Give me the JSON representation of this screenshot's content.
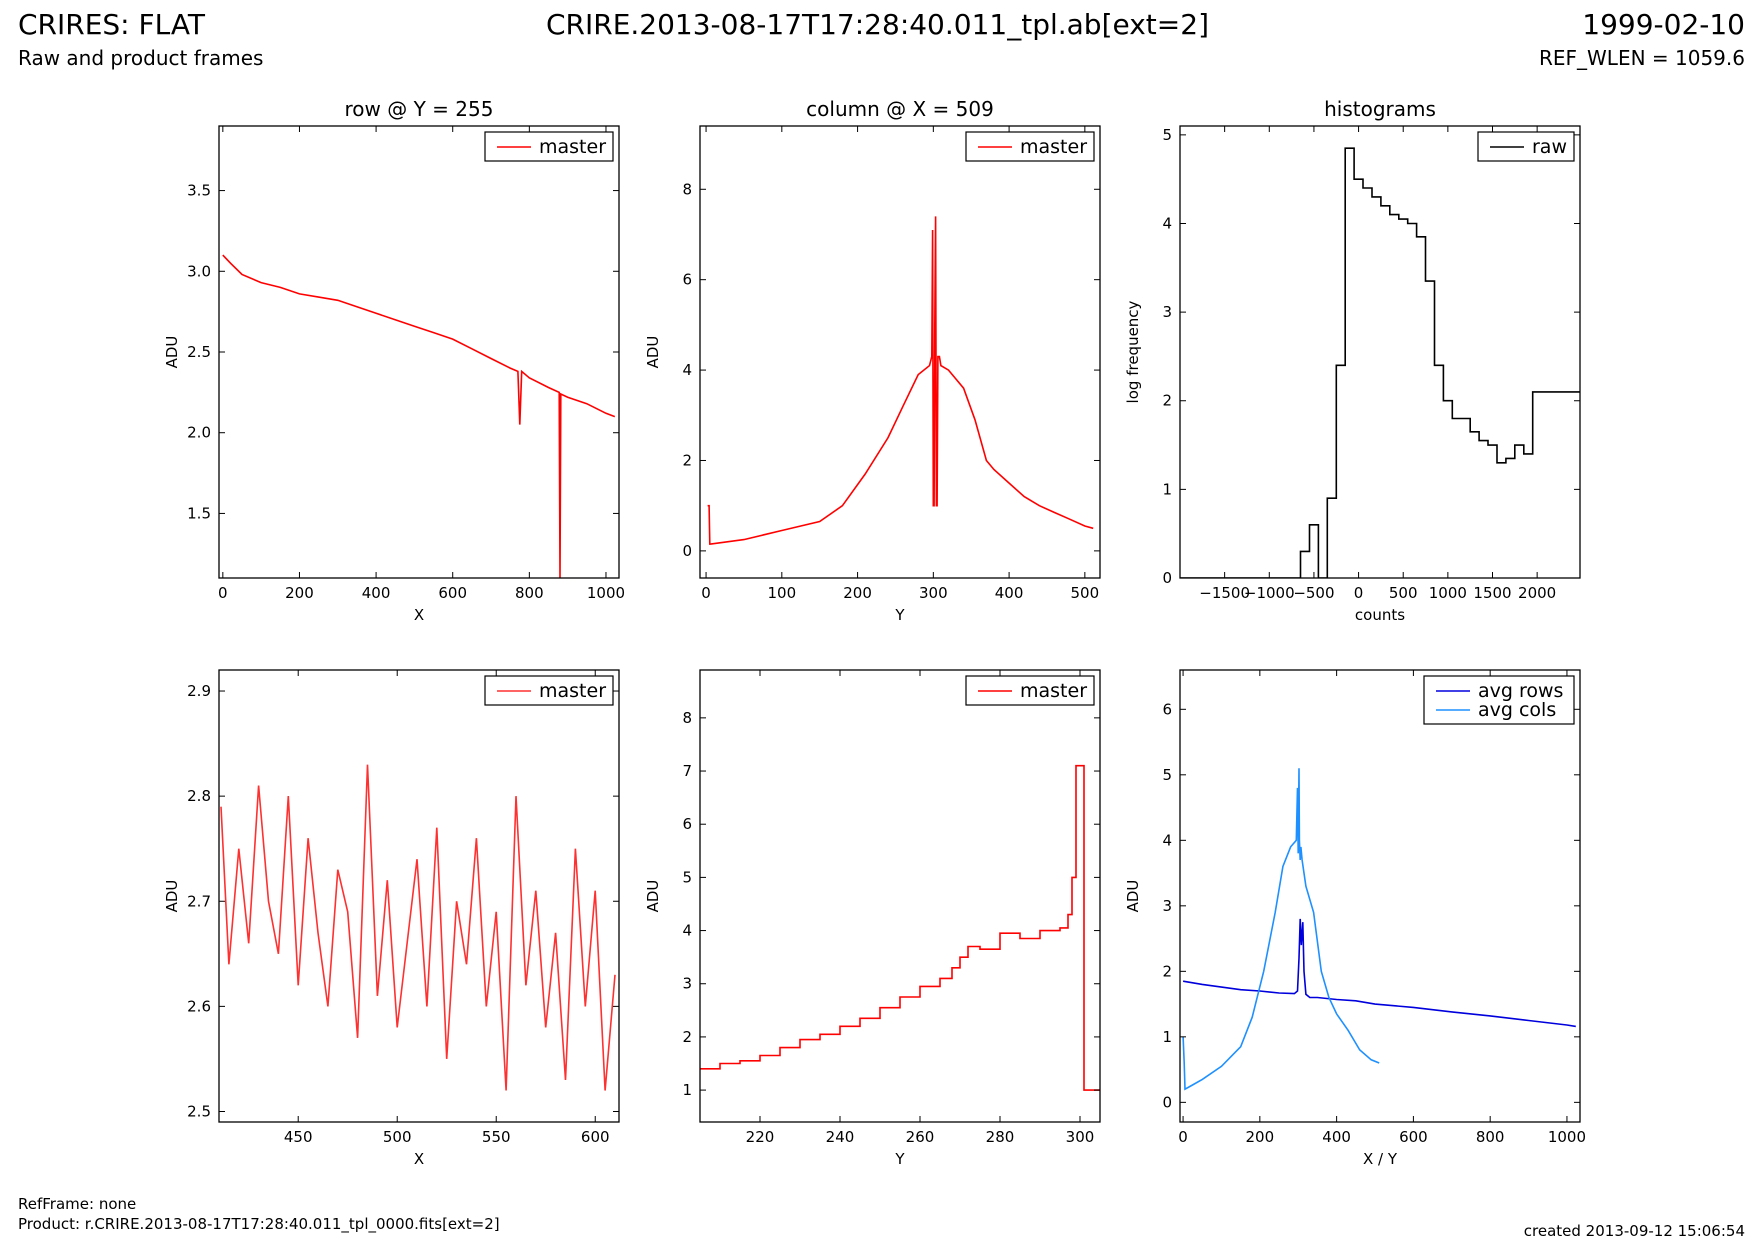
{
  "header": {
    "title": "CRIRES: FLAT",
    "subtitle": "Raw and product frames",
    "file": "CRIRE.2013-08-17T17:28:40.011_tpl.ab[ext=2]",
    "date": "1999-02-10",
    "ref_wlen": "REF_WLEN = 1059.6"
  },
  "footer": {
    "ref_frame": "RefFrame: none",
    "product": "Product: r.CRIRE.2013-08-17T17:28:40.011_tpl_0000.fits[ext=2]",
    "created": "created 2013-09-12 15:06:54"
  },
  "colors": {
    "master": "#ff0000",
    "raw": "#000000",
    "avg_rows": "#0000dd",
    "avg_cols": "#1e90ff"
  },
  "chart_data": [
    {
      "id": "row-full",
      "type": "line",
      "title": "row @ Y = 255",
      "xlabel": "X",
      "ylabel": "ADU",
      "xlim": [
        -10,
        1034
      ],
      "ylim": [
        1.1,
        3.9
      ],
      "xticks": [
        0,
        200,
        400,
        600,
        800,
        1000
      ],
      "yticks": [
        1.5,
        2.0,
        2.5,
        3.0,
        3.5
      ],
      "ytick_labels": [
        "1.5",
        "2.0",
        "2.5",
        "3.0",
        "3.5"
      ],
      "legend_position": "top-right",
      "series": [
        {
          "name": "master",
          "color": "#ff0000",
          "x": [
            0,
            20,
            50,
            100,
            150,
            200,
            250,
            300,
            350,
            400,
            450,
            500,
            550,
            600,
            650,
            700,
            750,
            770,
            775,
            780,
            800,
            850,
            878,
            880,
            882,
            900,
            950,
            1000,
            1023
          ],
          "y": [
            3.1,
            3.05,
            2.98,
            2.93,
            2.9,
            2.86,
            2.84,
            2.82,
            2.78,
            2.74,
            2.7,
            2.66,
            2.62,
            2.58,
            2.52,
            2.46,
            2.4,
            2.38,
            2.05,
            2.38,
            2.34,
            2.28,
            2.25,
            1.1,
            2.24,
            2.22,
            2.18,
            2.12,
            2.1
          ]
        }
      ]
    },
    {
      "id": "col-full",
      "type": "line",
      "title": "column @ X = 509",
      "xlabel": "Y",
      "ylabel": "ADU",
      "xlim": [
        -8,
        520
      ],
      "ylim": [
        -0.6,
        9.4
      ],
      "xticks": [
        0,
        100,
        200,
        300,
        400,
        500
      ],
      "yticks": [
        0,
        2,
        4,
        6,
        8
      ],
      "ytick_labels": [
        "0",
        "2",
        "4",
        "6",
        "8"
      ],
      "legend_position": "top-right",
      "series": [
        {
          "name": "master",
          "color": "#ff0000",
          "x": [
            2,
            4,
            5,
            6,
            50,
            100,
            150,
            180,
            210,
            240,
            260,
            280,
            295,
            298,
            299,
            300,
            301,
            302,
            303,
            304,
            305,
            306,
            308,
            310,
            320,
            340,
            355,
            370,
            380,
            400,
            420,
            440,
            460,
            480,
            500,
            511
          ],
          "y": [
            1.0,
            1.0,
            0.15,
            0.15,
            0.25,
            0.45,
            0.65,
            1.0,
            1.7,
            2.5,
            3.2,
            3.9,
            4.1,
            4.3,
            7.1,
            1.0,
            1.0,
            5.0,
            7.4,
            1.0,
            1.0,
            4.3,
            4.3,
            4.1,
            4.0,
            3.6,
            2.9,
            2.0,
            1.8,
            1.5,
            1.2,
            1.0,
            0.85,
            0.7,
            0.55,
            0.5
          ]
        }
      ]
    },
    {
      "id": "hist",
      "type": "step",
      "title": "histograms",
      "xlabel": "counts",
      "ylabel": "log frequency",
      "xlim": [
        -2000,
        2480
      ],
      "ylim": [
        0,
        5.1
      ],
      "xticks": [
        -1500,
        -1000,
        -500,
        0,
        500,
        1000,
        1500,
        2000
      ],
      "xtick_labels": [
        "−1500",
        "−1000",
        "−500",
        "0",
        "500",
        "1000",
        "1500",
        "2000"
      ],
      "yticks": [
        0,
        1,
        2,
        3,
        4,
        5
      ],
      "ytick_labels": [
        "0",
        "1",
        "2",
        "3",
        "4",
        "5"
      ],
      "legend_position": "top-right",
      "series": [
        {
          "name": "raw",
          "color": "#000000",
          "edges": [
            -2000,
            -650,
            -550,
            -450,
            -350,
            -250,
            -150,
            -50,
            50,
            150,
            250,
            350,
            450,
            550,
            650,
            750,
            850,
            950,
            1050,
            1150,
            1250,
            1350,
            1450,
            1550,
            1650,
            1750,
            1850,
            1950,
            2050,
            2150,
            2250,
            2350,
            2480
          ],
          "values": [
            0,
            0.3,
            0.6,
            0,
            0.9,
            2.4,
            4.85,
            4.5,
            4.4,
            4.3,
            4.2,
            4.1,
            4.05,
            4.0,
            3.85,
            3.35,
            2.4,
            2.0,
            1.8,
            1.8,
            1.65,
            1.55,
            1.5,
            1.3,
            1.35,
            1.5,
            1.4,
            2.1,
            2.1,
            2.1,
            2.1,
            2.1
          ]
        }
      ]
    },
    {
      "id": "row-zoom",
      "type": "line",
      "title": "",
      "xlabel": "X",
      "ylabel": "ADU",
      "xlim": [
        410,
        612
      ],
      "ylim": [
        2.49,
        2.92
      ],
      "xticks": [
        450,
        500,
        550,
        600
      ],
      "yticks": [
        2.5,
        2.6,
        2.7,
        2.8,
        2.9
      ],
      "ytick_labels": [
        "2.5",
        "2.6",
        "2.7",
        "2.8",
        "2.9"
      ],
      "legend_position": "top-right",
      "series": [
        {
          "name": "master",
          "color": "#ff3030",
          "x": [
            411,
            415,
            420,
            425,
            430,
            435,
            440,
            445,
            450,
            455,
            460,
            465,
            470,
            475,
            480,
            485,
            490,
            495,
            500,
            505,
            510,
            515,
            520,
            525,
            530,
            535,
            540,
            545,
            550,
            555,
            560,
            565,
            570,
            575,
            580,
            585,
            590,
            595,
            600,
            605,
            610
          ],
          "y": [
            2.79,
            2.64,
            2.75,
            2.66,
            2.81,
            2.7,
            2.65,
            2.8,
            2.62,
            2.76,
            2.67,
            2.6,
            2.73,
            2.69,
            2.57,
            2.83,
            2.61,
            2.72,
            2.58,
            2.66,
            2.74,
            2.6,
            2.77,
            2.55,
            2.7,
            2.64,
            2.76,
            2.6,
            2.69,
            2.52,
            2.8,
            2.62,
            2.71,
            2.58,
            2.67,
            2.53,
            2.75,
            2.6,
            2.71,
            2.52,
            2.63
          ]
        }
      ]
    },
    {
      "id": "col-zoom",
      "type": "step",
      "title": "",
      "xlabel": "Y",
      "ylabel": "ADU",
      "xlim": [
        205,
        305
      ],
      "ylim": [
        0.4,
        8.9
      ],
      "xticks": [
        220,
        240,
        260,
        280,
        300
      ],
      "yticks": [
        1,
        2,
        3,
        4,
        5,
        6,
        7,
        8
      ],
      "ytick_labels": [
        "1",
        "2",
        "3",
        "4",
        "5",
        "6",
        "7",
        "8"
      ],
      "legend_position": "top-right",
      "series": [
        {
          "name": "master",
          "color": "#ff0000",
          "x": [
            205,
            210,
            215,
            220,
            225,
            230,
            235,
            240,
            245,
            250,
            255,
            260,
            265,
            268,
            270,
            272,
            275,
            280,
            285,
            290,
            295,
            297,
            298,
            299,
            300,
            301,
            305
          ],
          "y": [
            1.4,
            1.5,
            1.55,
            1.65,
            1.8,
            1.95,
            2.05,
            2.2,
            2.35,
            2.55,
            2.75,
            2.95,
            3.1,
            3.3,
            3.5,
            3.7,
            3.65,
            3.95,
            3.85,
            4.0,
            4.05,
            4.3,
            5.0,
            7.1,
            7.1,
            1.0,
            1.0
          ]
        }
      ]
    },
    {
      "id": "avg",
      "type": "line",
      "title": "",
      "xlabel": "X / Y",
      "ylabel": "ADU",
      "xlim": [
        -8,
        1034
      ],
      "ylim": [
        -0.3,
        6.6
      ],
      "xticks": [
        0,
        200,
        400,
        600,
        800,
        1000
      ],
      "yticks": [
        0,
        1,
        2,
        3,
        4,
        5,
        6
      ],
      "ytick_labels": [
        "0",
        "1",
        "2",
        "3",
        "4",
        "5",
        "6"
      ],
      "legend_position": "top-right",
      "series": [
        {
          "name": "avg rows",
          "color": "#0000dd",
          "x": [
            0,
            50,
            100,
            150,
            200,
            250,
            290,
            298,
            302,
            305,
            308,
            312,
            315,
            320,
            330,
            350,
            400,
            450,
            500,
            600,
            700,
            800,
            900,
            1000,
            1023
          ],
          "y": [
            1.85,
            1.8,
            1.76,
            1.72,
            1.7,
            1.67,
            1.66,
            1.7,
            2.2,
            2.8,
            2.4,
            2.75,
            2.0,
            1.65,
            1.6,
            1.6,
            1.57,
            1.55,
            1.5,
            1.45,
            1.38,
            1.32,
            1.25,
            1.18,
            1.16
          ]
        }
      ]
    },
    {
      "id": "avg",
      "series": [
        {
          "name": "avg cols",
          "color": "#1e90ff",
          "x": [
            0,
            3,
            5,
            20,
            50,
            100,
            150,
            180,
            210,
            240,
            260,
            280,
            295,
            298,
            300,
            302,
            303,
            305,
            307,
            310,
            320,
            340,
            360,
            380,
            400,
            430,
            460,
            490,
            511
          ],
          "y": [
            1.0,
            0.6,
            0.2,
            0.25,
            0.35,
            0.55,
            0.85,
            1.3,
            2.0,
            2.9,
            3.6,
            3.9,
            4.0,
            4.8,
            3.8,
            5.1,
            4.0,
            3.7,
            3.9,
            3.7,
            3.3,
            2.9,
            2.0,
            1.6,
            1.35,
            1.1,
            0.8,
            0.65,
            0.6
          ]
        }
      ]
    }
  ]
}
